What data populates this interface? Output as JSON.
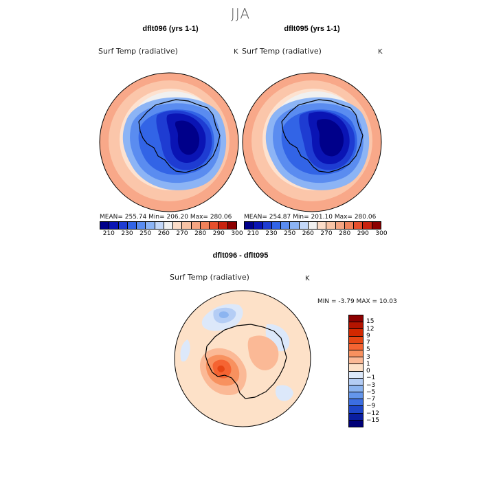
{
  "figure": {
    "season_title": "JJA"
  },
  "panels": [
    {
      "title": "dflt096 (yrs 1-1)",
      "variable": "Surf Temp (radiative)",
      "units": "K",
      "stats": "MEAN= 255.74   Min= 206.20   Max= 280.06"
    },
    {
      "title": "dflt095 (yrs 1-1)",
      "variable": "Surf Temp (radiative)",
      "units": "K",
      "stats": "MEAN= 254.87   Min= 201.10   Max= 280.06"
    }
  ],
  "diff_panel": {
    "title": "dflt096 - dflt095",
    "variable": "Surf Temp (radiative)",
    "units": "K",
    "stats": "MIN =   -3.79 MAX =   10.03"
  },
  "colorbar_abs": {
    "tick_labels": [
      "210",
      "230",
      "250",
      "260",
      "270",
      "280",
      "290",
      "300"
    ],
    "colors": [
      "#00008a",
      "#0a14b4",
      "#1e3cd2",
      "#3264e6",
      "#5a8cf0",
      "#8cb4f5",
      "#c3d7f8",
      "#f0f0f0",
      "#fbdcc8",
      "#f8c3a5",
      "#f5a582",
      "#f0825a",
      "#e6502d",
      "#c8230f",
      "#8c0000"
    ]
  },
  "colorbar_diff": {
    "tick_labels": [
      "15",
      "12",
      "9",
      "7",
      "5",
      "3",
      "1",
      "0",
      "−1",
      "−3",
      "−5",
      "−7",
      "−9",
      "−12",
      "−15"
    ],
    "colors": [
      "#8c0000",
      "#b41400",
      "#d22800",
      "#e64614",
      "#f56432",
      "#f8915f",
      "#fbb996",
      "#fde1c8",
      "#dce8fa",
      "#b4cdf5",
      "#8cb4f0",
      "#6496eb",
      "#3c6ee1",
      "#1e46c8",
      "#0a1ea0",
      "#000078"
    ]
  }
}
